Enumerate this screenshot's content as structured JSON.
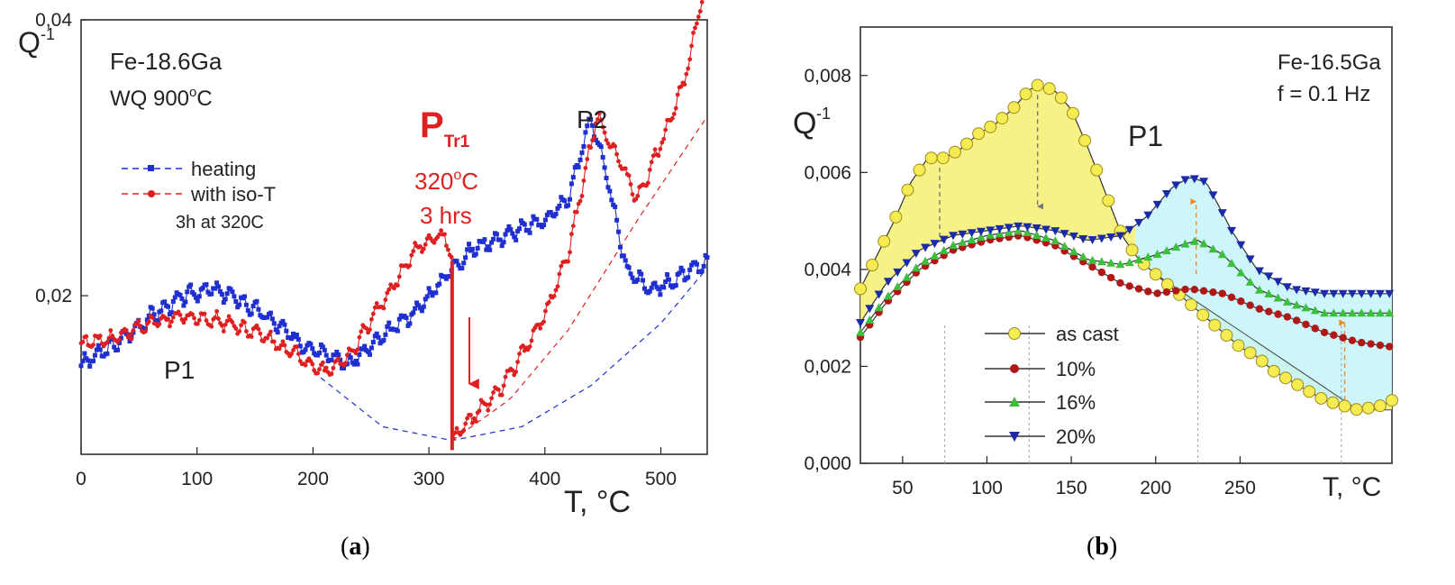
{
  "panels": {
    "a": {
      "caption_open": "(",
      "caption_letter": "a",
      "caption_close": ")"
    },
    "b": {
      "caption_open": "(",
      "caption_letter": "b",
      "caption_close": ")"
    }
  },
  "colors": {
    "blue": "#1f2fd0",
    "red": "#e02020",
    "yellow": "#f4f070",
    "cyan": "#c8f4fa",
    "darkred": "#b01818",
    "green": "#3cbf3c",
    "navy": "#1a2aa8"
  },
  "chart_data": [
    {
      "type": "line",
      "ylabel": "Q",
      "ylabel_sup": "-1",
      "xlabel": "T, °C",
      "xlim": [
        0,
        540
      ],
      "ylim": [
        0.0085,
        0.04
      ],
      "x_ticks": [
        0,
        100,
        200,
        300,
        400,
        500
      ],
      "x_tick_labels": [
        "0",
        "100",
        "200",
        "300",
        "400",
        "500"
      ],
      "y_ticks": [
        0.02,
        0.04
      ],
      "y_tick_labels": [
        "0,02",
        "0,04"
      ],
      "sample": "Fe-18.6Ga",
      "treatment": {
        "prefix": "WQ 900",
        "sup": "o",
        "suffix": "C"
      },
      "annotations": {
        "ptr_main": "P",
        "ptr_sub": "Tr1",
        "ptr_temp": {
          "prefix": "320",
          "sup": "o",
          "suffix": "C"
        },
        "ptr_time": "3 hrs",
        "p1": "P1",
        "p2": "P2"
      },
      "legend": {
        "position": "left",
        "entries": [
          {
            "label": "heating",
            "color": "blue"
          },
          {
            "label": "with iso-T",
            "color": "red",
            "note": "3h at 320C"
          }
        ]
      },
      "series": [
        {
          "name": "heating",
          "color": "blue",
          "x": [
            0,
            30,
            60,
            90,
            110,
            130,
            160,
            190,
            210,
            230,
            260,
            290,
            320,
            340,
            370,
            400,
            420,
            440,
            455,
            470,
            490,
            510,
            530,
            540
          ],
          "y": [
            0.015,
            0.0165,
            0.0185,
            0.02,
            0.0205,
            0.02,
            0.0185,
            0.0165,
            0.016,
            0.015,
            0.017,
            0.019,
            0.022,
            0.0235,
            0.0245,
            0.0255,
            0.027,
            0.033,
            0.028,
            0.022,
            0.0205,
            0.021,
            0.022,
            0.0225
          ]
        },
        {
          "name": "with iso-T",
          "color": "red",
          "x": [
            0,
            30,
            60,
            90,
            110,
            130,
            160,
            190,
            210,
            230,
            260,
            290,
            310,
            318,
            320,
            320,
            330,
            360,
            400,
            420,
            440,
            445,
            460,
            480,
            500,
            520,
            540
          ],
          "y": [
            0.0165,
            0.017,
            0.018,
            0.0185,
            0.0183,
            0.018,
            0.017,
            0.0155,
            0.0145,
            0.0155,
            0.0195,
            0.0235,
            0.0245,
            0.0235,
            0.0225,
            0.0095,
            0.0105,
            0.013,
            0.0185,
            0.023,
            0.031,
            0.033,
            0.0305,
            0.027,
            0.031,
            0.0355,
            0.0435
          ]
        }
      ],
      "baselines": [
        {
          "color": "blue",
          "x": [
            200,
            260,
            320,
            380,
            440,
            500,
            540
          ],
          "y": [
            0.0145,
            0.0105,
            0.0095,
            0.0105,
            0.0135,
            0.018,
            0.022
          ]
        },
        {
          "color": "red",
          "x": [
            320,
            370,
            420,
            480,
            540
          ],
          "y": [
            0.0095,
            0.0125,
            0.0175,
            0.0255,
            0.033
          ]
        }
      ]
    },
    {
      "type": "line",
      "ylabel": "Q",
      "ylabel_sup": "-1",
      "xlabel": "T, °C",
      "xlim": [
        25,
        340
      ],
      "ylim": [
        0,
        0.009
      ],
      "x_ticks": [
        50,
        100,
        150,
        200,
        250
      ],
      "x_tick_labels": [
        "50",
        "100",
        "150",
        "200",
        "250"
      ],
      "y_ticks": [
        0,
        0.002,
        0.004,
        0.006,
        0.008
      ],
      "y_tick_labels": [
        "0,000",
        "0,002",
        "0,004",
        "0,006",
        "0,008"
      ],
      "sample": "Fe-16.5Ga",
      "frequency": "f = 0.1 Hz",
      "annotations": {
        "p1": "P1"
      },
      "legend": {
        "position": "bottom-left",
        "entries": [
          {
            "label": "as cast",
            "marker": "circle",
            "color": "yellow"
          },
          {
            "label": "10%",
            "marker": "dot",
            "color": "darkred"
          },
          {
            "label": "16%",
            "marker": "triangle-up",
            "color": "green"
          },
          {
            "label": "20%",
            "marker": "triangle-down",
            "color": "navy"
          }
        ]
      },
      "series": [
        {
          "name": "as cast",
          "marker": "circle",
          "color": "yellow",
          "x": [
            25,
            35,
            45,
            55,
            65,
            75,
            85,
            95,
            105,
            115,
            125,
            130,
            140,
            150,
            160,
            170,
            180,
            190,
            200,
            210,
            220,
            230,
            240,
            250,
            260,
            270,
            280,
            290,
            300,
            310,
            320,
            335,
            340
          ],
          "y": [
            0.0036,
            0.0043,
            0.005,
            0.0058,
            0.0063,
            0.0063,
            0.0065,
            0.0068,
            0.007,
            0.0073,
            0.0077,
            0.0078,
            0.0077,
            0.0073,
            0.0065,
            0.0056,
            0.0047,
            0.0042,
            0.0039,
            0.0036,
            0.0033,
            0.003,
            0.0027,
            0.0024,
            0.0022,
            0.0019,
            0.0017,
            0.0015,
            0.0013,
            0.0012,
            0.0011,
            0.0012,
            0.0013
          ]
        },
        {
          "name": "10%",
          "marker": "dot",
          "color": "darkred",
          "x": [
            25,
            40,
            60,
            80,
            100,
            120,
            140,
            160,
            180,
            200,
            220,
            240,
            260,
            280,
            300,
            320,
            340
          ],
          "y": [
            0.0026,
            0.0033,
            0.004,
            0.0044,
            0.0046,
            0.0047,
            0.0045,
            0.0041,
            0.0037,
            0.0035,
            0.0036,
            0.0035,
            0.0032,
            0.003,
            0.0027,
            0.0025,
            0.0024
          ]
        },
        {
          "name": "16%",
          "marker": "triangle-up",
          "color": "green",
          "x": [
            25,
            40,
            60,
            80,
            100,
            120,
            140,
            160,
            180,
            200,
            215,
            225,
            240,
            260,
            280,
            300,
            320,
            340
          ],
          "y": [
            0.0027,
            0.0034,
            0.0041,
            0.0045,
            0.0047,
            0.0048,
            0.0046,
            0.0042,
            0.0041,
            0.0043,
            0.0045,
            0.0046,
            0.0043,
            0.0036,
            0.0033,
            0.0031,
            0.0031,
            0.0031
          ]
        },
        {
          "name": "20%",
          "marker": "triangle-down",
          "color": "navy",
          "x": [
            25,
            40,
            60,
            80,
            100,
            120,
            140,
            160,
            180,
            195,
            210,
            220,
            230,
            245,
            260,
            280,
            300,
            320,
            340
          ],
          "y": [
            0.0029,
            0.0037,
            0.0044,
            0.0047,
            0.0048,
            0.0049,
            0.0048,
            0.0046,
            0.0047,
            0.0051,
            0.0057,
            0.0059,
            0.0058,
            0.0048,
            0.004,
            0.0036,
            0.0035,
            0.0035,
            0.0035
          ]
        }
      ]
    }
  ]
}
